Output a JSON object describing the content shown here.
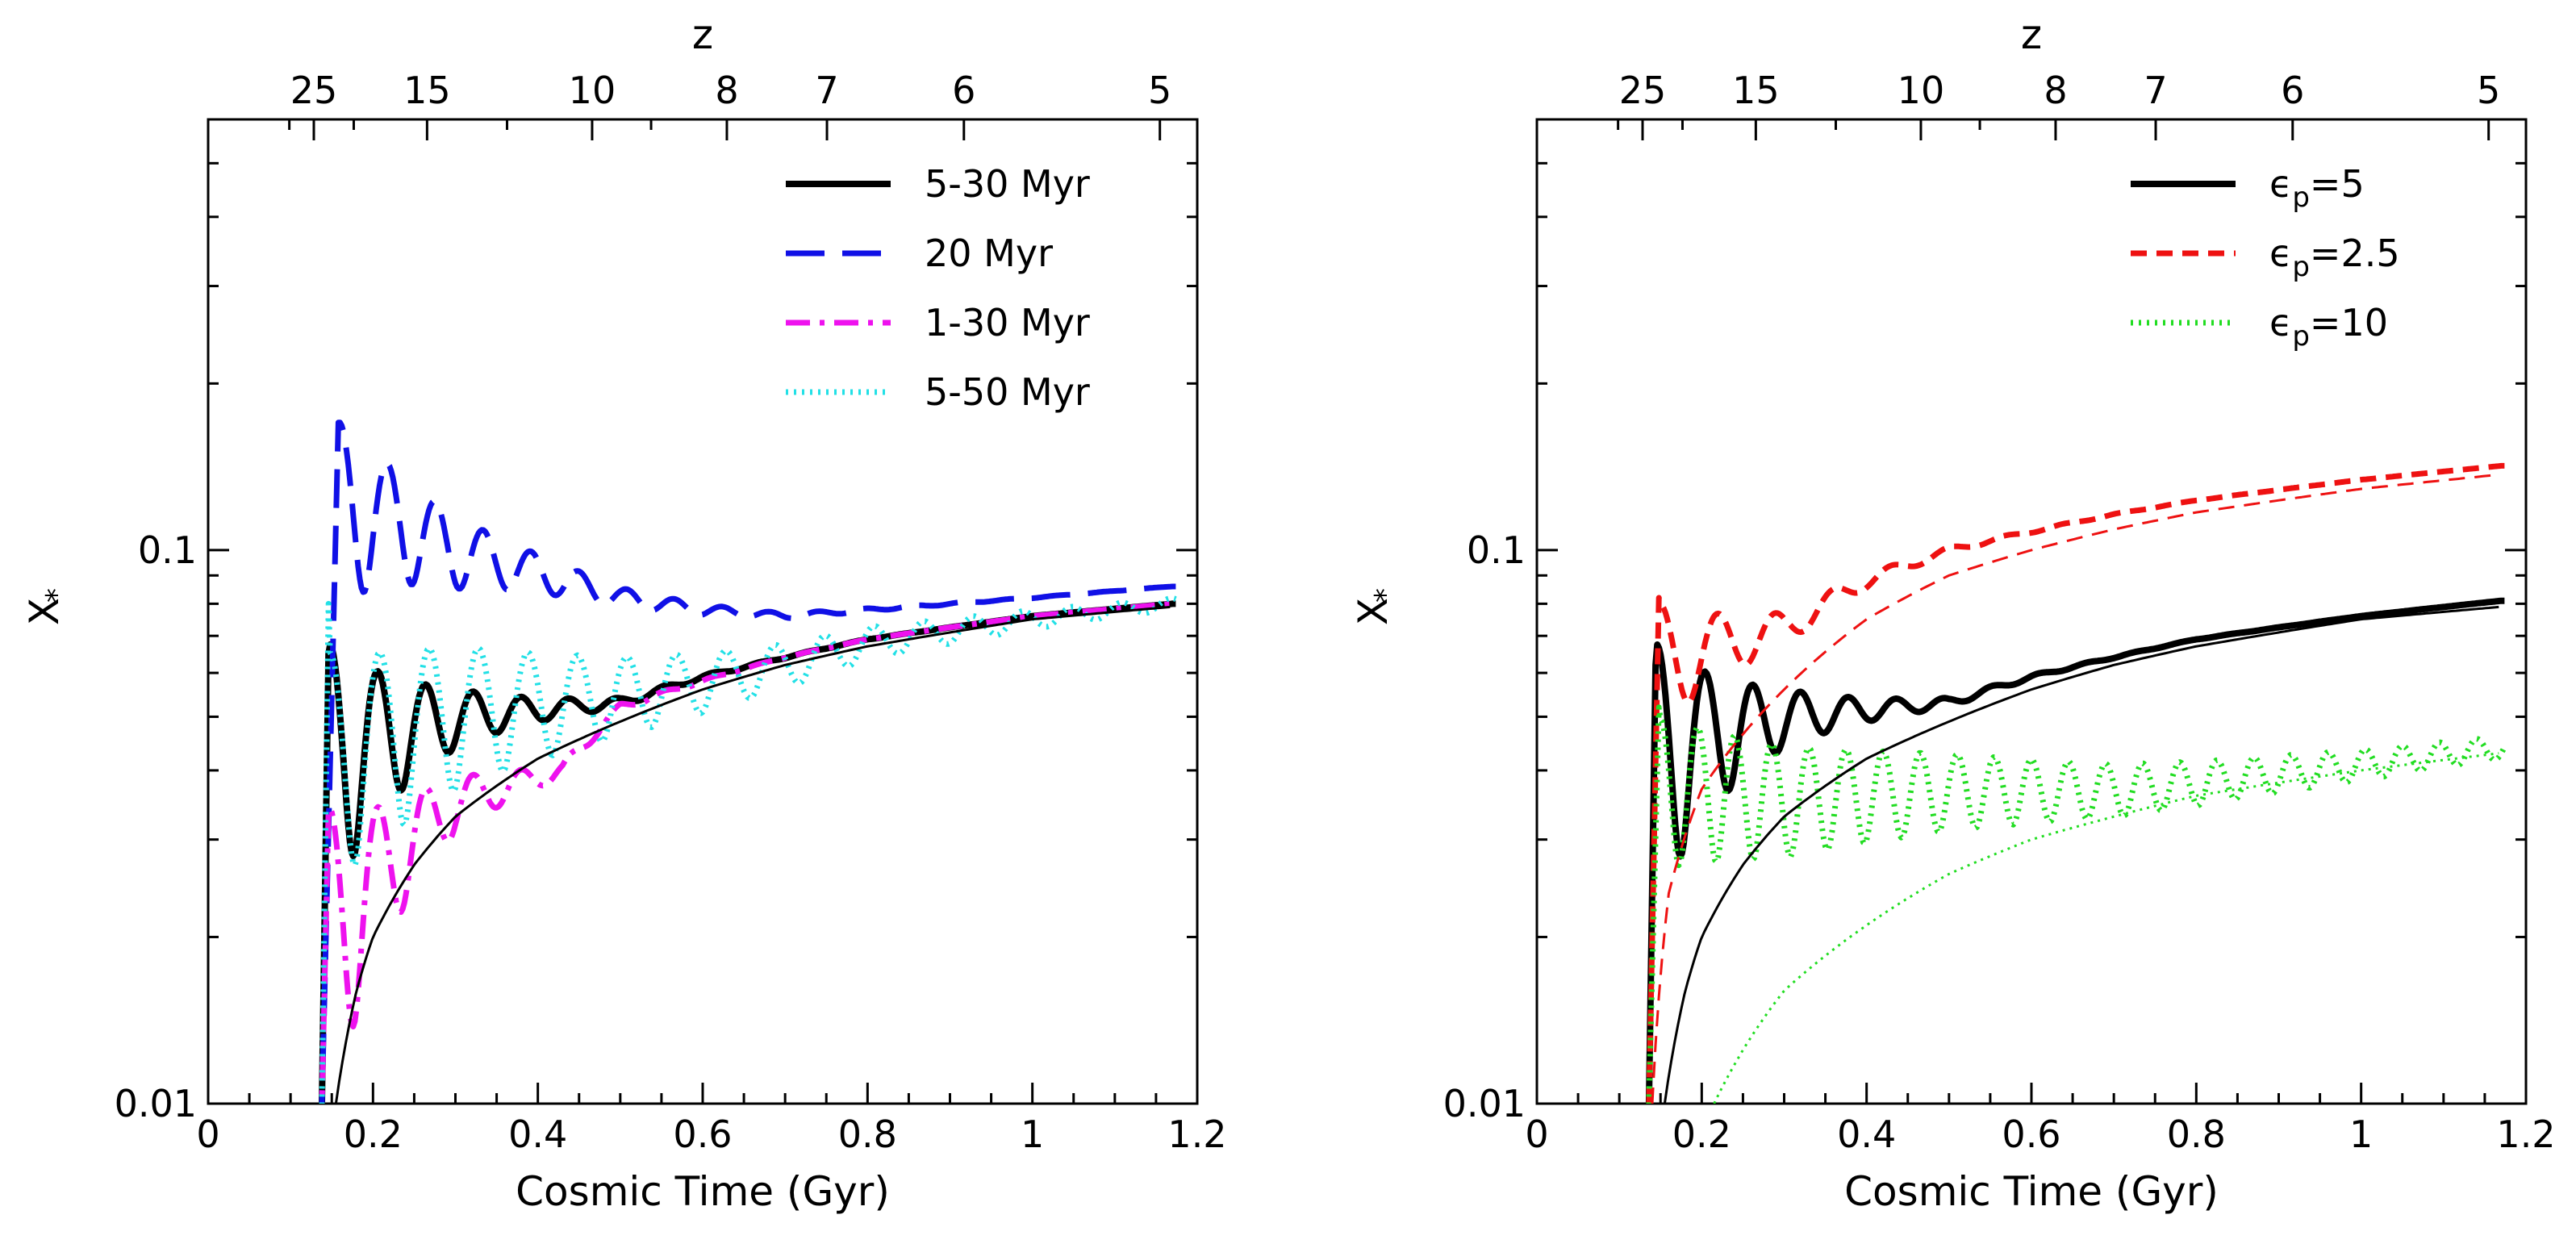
{
  "chart_data": [
    {
      "type": "line",
      "xlabel": "Cosmic Time (Gyr)",
      "ylabel": "X",
      "ylabel_subscript": "*",
      "top_axis_label": "z",
      "yscale": "log",
      "xlim": [
        0,
        1.2
      ],
      "ylim": [
        0.01,
        0.6
      ],
      "xticks": [
        0,
        0.2,
        0.4,
        0.6,
        0.8,
        1,
        1.2
      ],
      "xtick_labels": [
        "0",
        "0.2",
        "0.4",
        "0.6",
        "0.8",
        "1",
        "1.2"
      ],
      "yticks": [
        0.01,
        0.1
      ],
      "ytick_labels": [
        "0.01",
        "0.1"
      ],
      "top_ticks_z": [
        25,
        15,
        10,
        8,
        7,
        6,
        5
      ],
      "top_tick_labels": [
        "25",
        "15",
        "10",
        "8",
        "7",
        "6",
        "5"
      ],
      "legend_position": "top-right",
      "series": [
        {
          "name": "5-30 Myr",
          "color": "#000000",
          "style": "solid-thick",
          "t0": 0.138,
          "start": 0.01,
          "peak": 0.065,
          "peak_t": 0.148,
          "period": 0.058,
          "amp": 0.5,
          "decay": 0.11,
          "trend": [
            [
              0.16,
              0.045
            ],
            [
              0.3,
              0.05
            ],
            [
              0.5,
              0.053
            ],
            [
              0.6,
              0.059
            ],
            [
              0.7,
              0.064
            ],
            [
              0.8,
              0.069
            ],
            [
              1.0,
              0.076
            ],
            [
              1.17,
              0.08
            ]
          ]
        },
        {
          "name": "20 Myr",
          "color": "#1010e6",
          "style": "long-dash",
          "t0": 0.138,
          "start": 0.01,
          "peak": 0.17,
          "peak_t": 0.16,
          "period": 0.058,
          "amp": 0.36,
          "decay": 0.16,
          "trend": [
            [
              0.16,
              0.125
            ],
            [
              0.3,
              0.1
            ],
            [
              0.5,
              0.082
            ],
            [
              0.6,
              0.078
            ],
            [
              0.7,
              0.076
            ],
            [
              0.8,
              0.078
            ],
            [
              1.0,
              0.082
            ],
            [
              1.17,
              0.086
            ]
          ]
        },
        {
          "name": "1-30 Myr",
          "color": "#ee12ee",
          "style": "dash-dot",
          "t0": 0.138,
          "start": 0.01,
          "peak": 0.034,
          "peak_t": 0.148,
          "period": 0.058,
          "amp": 0.55,
          "decay": 0.1,
          "trend": [
            [
              0.16,
              0.022
            ],
            [
              0.3,
              0.035
            ],
            [
              0.43,
              0.04
            ],
            [
              0.5,
              0.052
            ],
            [
              0.6,
              0.058
            ],
            [
              0.7,
              0.064
            ],
            [
              0.8,
              0.069
            ],
            [
              1.0,
              0.076
            ],
            [
              1.17,
              0.08
            ]
          ]
        },
        {
          "name": "5-50 Myr",
          "color": "#22e0e6",
          "style": "dotted",
          "t0": 0.138,
          "start": 0.01,
          "peak": 0.08,
          "peak_t": 0.148,
          "period": 0.06,
          "amp": 0.45,
          "decay": 0.35,
          "trend": [
            [
              0.16,
              0.045
            ],
            [
              0.3,
              0.052
            ],
            [
              0.5,
              0.055
            ],
            [
              0.6,
              0.058
            ],
            [
              0.7,
              0.062
            ],
            [
              0.8,
              0.068
            ],
            [
              1.0,
              0.075
            ],
            [
              1.17,
              0.08
            ]
          ]
        },
        {
          "name": "",
          "color": "#000000",
          "style": "solid-thin",
          "smooth_start": 0.155,
          "smooth_points": [
            [
              0.155,
              0.01
            ],
            [
              0.18,
              0.016
            ],
            [
              0.2,
              0.02
            ],
            [
              0.25,
              0.027
            ],
            [
              0.3,
              0.033
            ],
            [
              0.4,
              0.042
            ],
            [
              0.5,
              0.049
            ],
            [
              0.6,
              0.056
            ],
            [
              0.7,
              0.062
            ],
            [
              0.8,
              0.067
            ],
            [
              0.9,
              0.071
            ],
            [
              1.0,
              0.075
            ],
            [
              1.17,
              0.079
            ]
          ]
        }
      ]
    },
    {
      "type": "line",
      "xlabel": "Cosmic Time (Gyr)",
      "ylabel": "X",
      "ylabel_subscript": "*",
      "top_axis_label": "z",
      "yscale": "log",
      "xlim": [
        0,
        1.2
      ],
      "ylim": [
        0.01,
        0.6
      ],
      "xticks": [
        0,
        0.2,
        0.4,
        0.6,
        0.8,
        1,
        1.2
      ],
      "xtick_labels": [
        "0",
        "0.2",
        "0.4",
        "0.6",
        "0.8",
        "1",
        "1.2"
      ],
      "yticks": [
        0.01,
        0.1
      ],
      "ytick_labels": [
        "0.01",
        "0.1"
      ],
      "top_ticks_z": [
        25,
        15,
        10,
        8,
        7,
        6,
        5
      ],
      "top_tick_labels": [
        "25",
        "15",
        "10",
        "8",
        "7",
        "6",
        "5"
      ],
      "legend_position": "top-right",
      "series": [
        {
          "name": "ϵp=5",
          "legend_main": "ϵ",
          "legend_sub": "p",
          "legend_tail": "=5",
          "color": "#000000",
          "style": "solid-thick",
          "t0": 0.136,
          "start": 0.01,
          "peak": 0.062,
          "peak_t": 0.146,
          "period": 0.058,
          "amp": 0.5,
          "decay": 0.11,
          "trend": [
            [
              0.16,
              0.045
            ],
            [
              0.3,
              0.05
            ],
            [
              0.5,
              0.053
            ],
            [
              0.6,
              0.059
            ],
            [
              0.7,
              0.064
            ],
            [
              0.8,
              0.069
            ],
            [
              1.0,
              0.076
            ],
            [
              1.17,
              0.081
            ]
          ]
        },
        {
          "name": "ϵp=2.5",
          "legend_main": "ϵ",
          "legend_sub": "p",
          "legend_tail": "=2.5",
          "color": "#ee1111",
          "style": "short-dash",
          "t0": 0.136,
          "start": 0.01,
          "peak": 0.082,
          "peak_t": 0.15,
          "period": 0.07,
          "amp": 0.25,
          "decay": 0.12,
          "trend": [
            [
              0.16,
              0.064
            ],
            [
              0.3,
              0.072
            ],
            [
              0.4,
              0.088
            ],
            [
              0.5,
              0.1
            ],
            [
              0.6,
              0.108
            ],
            [
              0.7,
              0.116
            ],
            [
              0.8,
              0.123
            ],
            [
              1.0,
              0.134
            ],
            [
              1.17,
              0.142
            ]
          ]
        },
        {
          "name": "ϵp=10",
          "legend_main": "ϵ",
          "legend_sub": "p",
          "legend_tail": "=10",
          "color": "#22dd22",
          "style": "dotted",
          "t0": 0.136,
          "start": 0.01,
          "peak": 0.052,
          "peak_t": 0.15,
          "period": 0.045,
          "amp": 0.3,
          "decay": 0.55,
          "trend": [
            [
              0.16,
              0.038
            ],
            [
              0.3,
              0.036
            ],
            [
              0.5,
              0.037
            ],
            [
              0.7,
              0.037
            ],
            [
              0.8,
              0.038
            ],
            [
              1.0,
              0.041
            ],
            [
              1.17,
              0.044
            ]
          ]
        },
        {
          "name": "",
          "color": "#000000",
          "style": "solid-thin",
          "smooth_points": [
            [
              0.155,
              0.01
            ],
            [
              0.18,
              0.016
            ],
            [
              0.2,
              0.02
            ],
            [
              0.25,
              0.027
            ],
            [
              0.3,
              0.033
            ],
            [
              0.4,
              0.042
            ],
            [
              0.5,
              0.049
            ],
            [
              0.6,
              0.056
            ],
            [
              0.7,
              0.062
            ],
            [
              0.8,
              0.067
            ],
            [
              0.9,
              0.071
            ],
            [
              1.0,
              0.075
            ],
            [
              1.17,
              0.079
            ]
          ]
        },
        {
          "name": "",
          "color": "#ee1111",
          "style": "dash-thin",
          "smooth_points": [
            [
              0.14,
              0.01
            ],
            [
              0.16,
              0.024
            ],
            [
              0.2,
              0.037
            ],
            [
              0.3,
              0.056
            ],
            [
              0.4,
              0.075
            ],
            [
              0.5,
              0.09
            ],
            [
              0.6,
              0.1
            ],
            [
              0.7,
              0.109
            ],
            [
              0.8,
              0.117
            ],
            [
              1.0,
              0.129
            ],
            [
              1.17,
              0.137
            ]
          ]
        },
        {
          "name": "",
          "color": "#22dd22",
          "style": "dotted-thin",
          "smooth_points": [
            [
              0.215,
              0.01
            ],
            [
              0.25,
              0.0125
            ],
            [
              0.3,
              0.016
            ],
            [
              0.4,
              0.021
            ],
            [
              0.5,
              0.026
            ],
            [
              0.6,
              0.03
            ],
            [
              0.7,
              0.033
            ],
            [
              0.8,
              0.036
            ],
            [
              1.0,
              0.04
            ],
            [
              1.17,
              0.043
            ]
          ]
        }
      ]
    }
  ]
}
